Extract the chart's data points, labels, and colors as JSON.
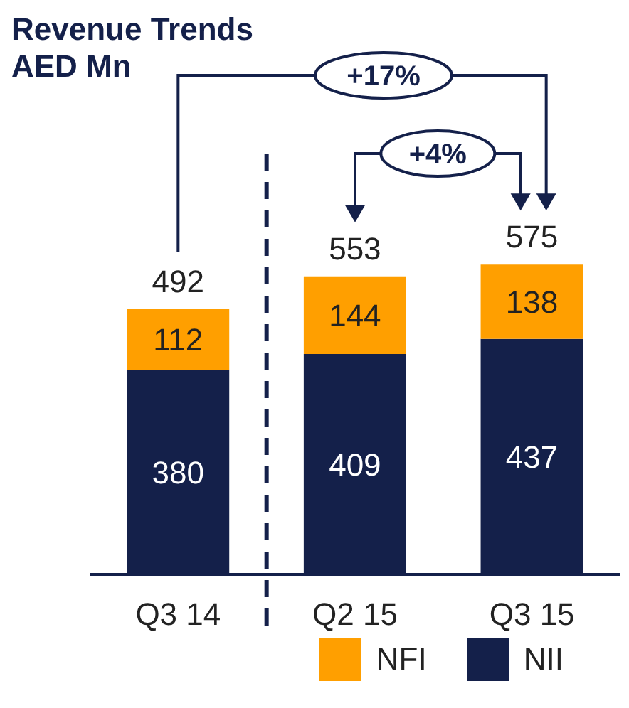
{
  "chart_data": {
    "type": "bar",
    "title": "Revenue Trends",
    "subtitle": "AED Mn",
    "categories": [
      "Q3 14",
      "Q2 15",
      "Q3 15"
    ],
    "stacked": true,
    "series": [
      {
        "name": "NII",
        "color": "#14204a",
        "values": [
          380,
          409,
          437
        ]
      },
      {
        "name": "NFI",
        "color": "#ff9f00",
        "values": [
          112,
          144,
          138
        ]
      }
    ],
    "data_labels": true,
    "totals": [
      "492",
      "553",
      "575"
    ],
    "annotations": [
      "+17%",
      "+4%"
    ],
    "legend": "bottom right"
  }
}
